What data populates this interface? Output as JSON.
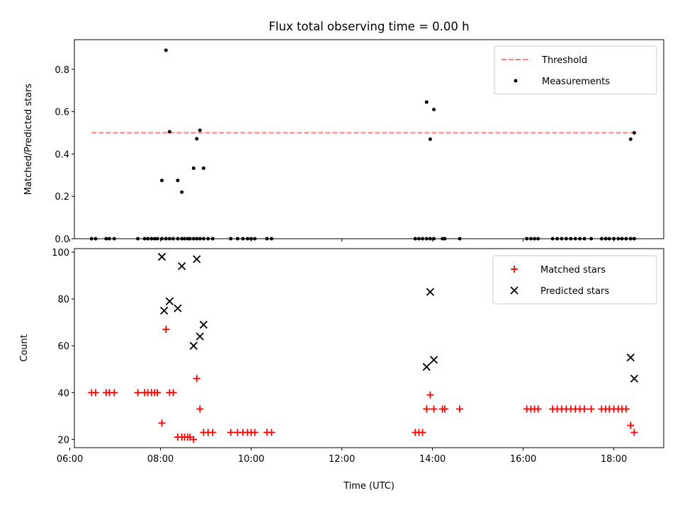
{
  "figure_title": "Flux total observing time = 0.00 h",
  "chart_data": [
    {
      "type": "scatter",
      "ylabel": "Matched/Predicted stars",
      "xlabel": "",
      "xlim": [
        6.1,
        19.1
      ],
      "ylim": [
        0,
        0.94
      ],
      "yticks": [
        0.0,
        0.2,
        0.4,
        0.6,
        0.8
      ],
      "ytick_labels": [
        "0.0",
        "0.2",
        "0.4",
        "0.6",
        "0.8"
      ],
      "legend_position": "top-right",
      "threshold": {
        "name": "Threshold",
        "value": 0.5,
        "x_range": [
          6.48,
          18.47
        ],
        "color": "#ff7f7f"
      },
      "series": [
        {
          "name": "Measurements",
          "marker": "dot",
          "color": "#000000",
          "x": [
            6.48,
            6.57,
            6.8,
            6.87,
            6.98,
            7.5,
            7.65,
            7.72,
            7.8,
            7.87,
            7.93,
            8.03,
            8.12,
            8.2,
            8.28,
            8.38,
            8.47,
            8.53,
            8.6,
            8.65,
            8.73,
            8.8,
            8.87,
            8.95,
            9.05,
            9.15,
            9.55,
            9.7,
            9.82,
            9.92,
            10.0,
            10.08,
            10.35,
            10.45,
            13.62,
            13.7,
            13.78,
            13.87,
            13.95,
            14.03,
            14.22,
            14.27,
            14.6,
            16.08,
            16.17,
            16.25,
            16.33,
            16.65,
            16.75,
            16.85,
            16.95,
            17.05,
            17.15,
            17.25,
            17.35,
            17.5,
            17.73,
            17.82,
            17.9,
            18.0,
            18.1,
            18.18,
            18.27,
            18.37,
            18.45,
            8.03,
            8.12,
            8.2,
            8.38,
            8.47,
            8.73,
            8.8,
            8.87,
            8.95,
            13.87,
            13.95,
            14.03,
            18.37,
            18.45
          ],
          "y": [
            0,
            0,
            0,
            0,
            0,
            0,
            0,
            0,
            0,
            0,
            0,
            0,
            0,
            0,
            0,
            0,
            0,
            0,
            0,
            0,
            0,
            0,
            0,
            0,
            0,
            0,
            0,
            0,
            0,
            0,
            0,
            0,
            0,
            0,
            0,
            0,
            0,
            0,
            0,
            0,
            0,
            0,
            0,
            0,
            0,
            0,
            0,
            0,
            0,
            0,
            0,
            0,
            0,
            0,
            0,
            0,
            0,
            0,
            0,
            0,
            0,
            0,
            0,
            0,
            0,
            0.275,
            0.89,
            0.505,
            0.275,
            0.22,
            0.333,
            0.472,
            0.512,
            0.333,
            0.645,
            0.47,
            0.61,
            0.47,
            0.5
          ]
        }
      ]
    },
    {
      "type": "scatter",
      "ylabel": "Count",
      "xlabel": "Time (UTC)",
      "xlim": [
        6.1,
        19.1
      ],
      "ylim": [
        16.5,
        101.5
      ],
      "yticks": [
        20,
        40,
        60,
        80,
        100
      ],
      "ytick_labels": [
        "20",
        "40",
        "60",
        "80",
        "100"
      ],
      "xticks": [
        6,
        8,
        10,
        12,
        14,
        16,
        18
      ],
      "xtick_labels": [
        "06:00",
        "08:00",
        "10:00",
        "12:00",
        "14:00",
        "16:00",
        "18:00"
      ],
      "legend_position": "top-right",
      "series": [
        {
          "name": "Matched stars",
          "marker": "plus",
          "color": "#ff0000",
          "x": [
            6.48,
            6.57,
            6.8,
            6.87,
            6.98,
            7.5,
            7.65,
            7.72,
            7.8,
            7.87,
            7.93,
            8.03,
            8.12,
            8.2,
            8.28,
            8.38,
            8.47,
            8.53,
            8.6,
            8.65,
            8.73,
            8.8,
            8.87,
            8.95,
            9.05,
            9.15,
            9.55,
            9.7,
            9.82,
            9.92,
            10.0,
            10.08,
            10.35,
            10.45,
            13.62,
            13.7,
            13.78,
            13.87,
            13.95,
            14.03,
            14.22,
            14.27,
            14.6,
            16.08,
            16.17,
            16.25,
            16.33,
            16.65,
            16.75,
            16.85,
            16.95,
            17.05,
            17.15,
            17.25,
            17.35,
            17.5,
            17.73,
            17.82,
            17.9,
            18.0,
            18.1,
            18.18,
            18.27,
            18.37,
            18.45
          ],
          "y": [
            40,
            40,
            40,
            40,
            40,
            40,
            40,
            40,
            40,
            40,
            40,
            27,
            67,
            40,
            40,
            21,
            21,
            21,
            21,
            21,
            20,
            46,
            33,
            23,
            23,
            23,
            23,
            23,
            23,
            23,
            23,
            23,
            23,
            23,
            23,
            23,
            23,
            33,
            39,
            33,
            33,
            33,
            33,
            33,
            33,
            33,
            33,
            33,
            33,
            33,
            33,
            33,
            33,
            33,
            33,
            33,
            33,
            33,
            33,
            33,
            33,
            33,
            33,
            26,
            23
          ]
        },
        {
          "name": "Predicted stars",
          "marker": "x",
          "color": "#000000",
          "x": [
            8.03,
            8.08,
            8.2,
            8.38,
            8.47,
            8.73,
            8.8,
            8.87,
            8.95,
            13.87,
            13.95,
            14.03,
            18.37,
            18.45
          ],
          "y": [
            98,
            75,
            79,
            76,
            94,
            60,
            97,
            64,
            69,
            51,
            83,
            54,
            55,
            46
          ]
        }
      ]
    }
  ]
}
